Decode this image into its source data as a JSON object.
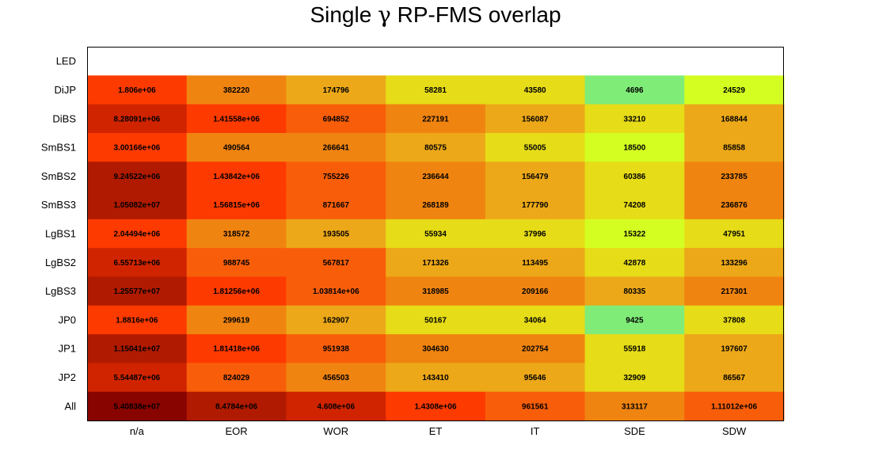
{
  "chart_data": {
    "type": "heatmap",
    "title_pre": "Single ",
    "title_symbol": "γ",
    "title_post": " RP-FMS overlap",
    "x_categories": [
      "n/a",
      "EOR",
      "WOR",
      "ET",
      "IT",
      "SDE",
      "SDW"
    ],
    "y_categories": [
      "LED",
      "DiJP",
      "DiBS",
      "SmBS1",
      "SmBS2",
      "SmBS3",
      "LgBS1",
      "LgBS2",
      "LgBS3",
      "JP0",
      "JP1",
      "JP2",
      "All"
    ],
    "cells": [
      {
        "values": [
          null,
          null,
          null,
          null,
          null,
          null,
          null
        ],
        "labels": [
          "",
          "",
          "",
          "",
          "",
          "",
          ""
        ]
      },
      {
        "values": [
          1806000,
          382220,
          174796,
          58281,
          43580,
          4696,
          24529
        ],
        "labels": [
          "1.806e+06",
          "382220",
          "174796",
          "58281",
          "43580",
          "4696",
          "24529"
        ]
      },
      {
        "values": [
          8280910,
          1415580,
          694852,
          227191,
          156087,
          33210,
          168844
        ],
        "labels": [
          "8.28091e+06",
          "1.41558e+06",
          "694852",
          "227191",
          "156087",
          "33210",
          "168844"
        ]
      },
      {
        "values": [
          3001660,
          490564,
          266641,
          80575,
          55005,
          18500,
          85858
        ],
        "labels": [
          "3.00166e+06",
          "490564",
          "266641",
          "80575",
          "55005",
          "18500",
          "85858"
        ]
      },
      {
        "values": [
          9245220,
          1438420,
          755226,
          236644,
          156479,
          60386,
          233785
        ],
        "labels": [
          "9.24522e+06",
          "1.43842e+06",
          "755226",
          "236644",
          "156479",
          "60386",
          "233785"
        ]
      },
      {
        "values": [
          10508200,
          1568150,
          871667,
          268189,
          177790,
          74208,
          236876
        ],
        "labels": [
          "1.05082e+07",
          "1.56815e+06",
          "871667",
          "268189",
          "177790",
          "74208",
          "236876"
        ]
      },
      {
        "values": [
          2044940,
          318572,
          193505,
          55934,
          37996,
          15322,
          47951
        ],
        "labels": [
          "2.04494e+06",
          "318572",
          "193505",
          "55934",
          "37996",
          "15322",
          "47951"
        ]
      },
      {
        "values": [
          6557130,
          988745,
          567817,
          171326,
          113495,
          42878,
          133296
        ],
        "labels": [
          "6.55713e+06",
          "988745",
          "567817",
          "171326",
          "113495",
          "42878",
          "133296"
        ]
      },
      {
        "values": [
          12557700,
          1812560,
          1038140,
          318985,
          209166,
          80335,
          217301
        ],
        "labels": [
          "1.25577e+07",
          "1.81256e+06",
          "1.03814e+06",
          "318985",
          "209166",
          "80335",
          "217301"
        ]
      },
      {
        "values": [
          1881600,
          299619,
          162907,
          50167,
          34064,
          9425,
          37808
        ],
        "labels": [
          "1.8816e+06",
          "299619",
          "162907",
          "50167",
          "34064",
          "9425",
          "37808"
        ]
      },
      {
        "values": [
          11504100,
          1814180,
          951938,
          304630,
          202754,
          55918,
          197607
        ],
        "labels": [
          "1.15041e+07",
          "1.81418e+06",
          "951938",
          "304630",
          "202754",
          "55918",
          "197607"
        ]
      },
      {
        "values": [
          5544870,
          824029,
          456503,
          143410,
          95646,
          32909,
          86567
        ],
        "labels": [
          "5.54487e+06",
          "824029",
          "456503",
          "143410",
          "95646",
          "32909",
          "86567"
        ]
      },
      {
        "values": [
          54083800,
          8478400,
          4608000,
          1430800,
          961561,
          313117,
          1110120
        ],
        "labels": [
          "5.40838e+07",
          "8.4784e+06",
          "4.608e+06",
          "1.4308e+06",
          "961561",
          "313117",
          "1.11012e+06"
        ]
      }
    ],
    "color_scale": "log",
    "color_stops": [
      "#80ec78",
      "#d4fe22",
      "#e6dc18",
      "#eca818",
      "#f08410",
      "#f85e0a",
      "#fd3a00",
      "#d02400",
      "#b01a00",
      "#880400"
    ],
    "grid": false,
    "legend": "none"
  }
}
